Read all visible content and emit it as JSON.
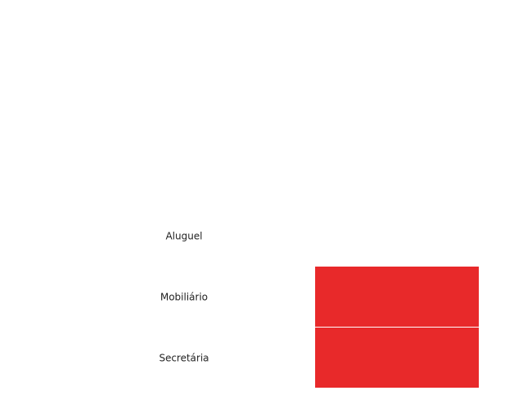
{
  "chart_data": {
    "type": "bar",
    "orientation": "horizontal",
    "categories": [
      "Aluguel",
      "Mobiliário",
      "Secretária"
    ],
    "values": [
      0,
      1,
      1
    ],
    "colors": {
      "bar": "#e8292a"
    },
    "grid": false,
    "legend": "none"
  }
}
